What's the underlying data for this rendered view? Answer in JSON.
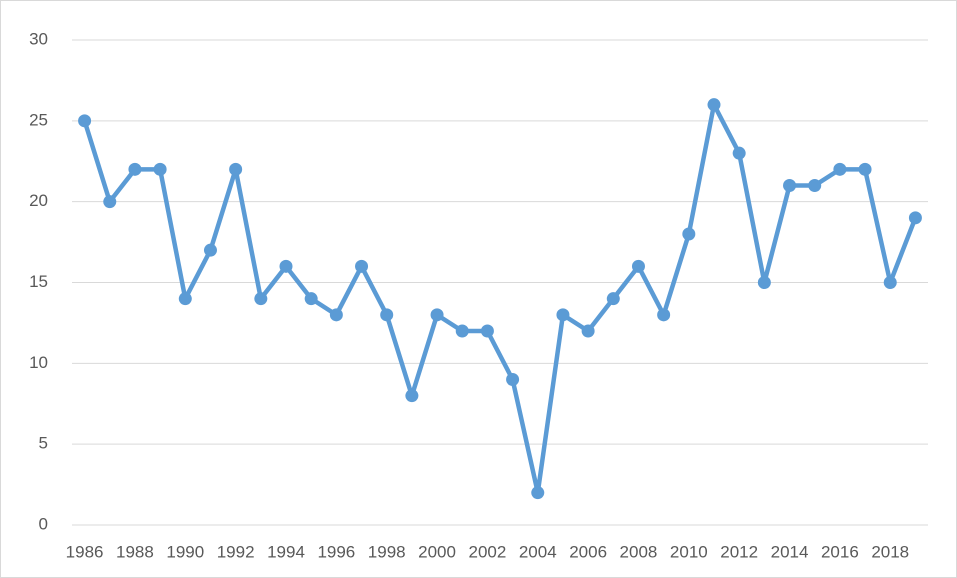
{
  "chart_data": {
    "type": "line",
    "categories": [
      "1986",
      null,
      "1988",
      null,
      "1990",
      null,
      "1992",
      null,
      "1994",
      null,
      "1996",
      null,
      "1998",
      null,
      "2000",
      null,
      "2002",
      null,
      "2004",
      null,
      "2006",
      null,
      "2008",
      null,
      "2010",
      null,
      "2012",
      null,
      "2014",
      null,
      "2016",
      null,
      "2018",
      null
    ],
    "series": [
      {
        "color": "#5b9bd5",
        "values": [
          25,
          20,
          22,
          22,
          14,
          17,
          22,
          14,
          16,
          14,
          13,
          16,
          13,
          8,
          13,
          12,
          12,
          9,
          2,
          13,
          12,
          14,
          16,
          13,
          18,
          26,
          23,
          15,
          21,
          21,
          22,
          22,
          15,
          19
        ]
      }
    ],
    "ylim": [
      0,
      30
    ],
    "yticks": [
      0,
      5,
      10,
      15,
      20,
      25,
      30
    ],
    "grid": true,
    "markers": true
  }
}
